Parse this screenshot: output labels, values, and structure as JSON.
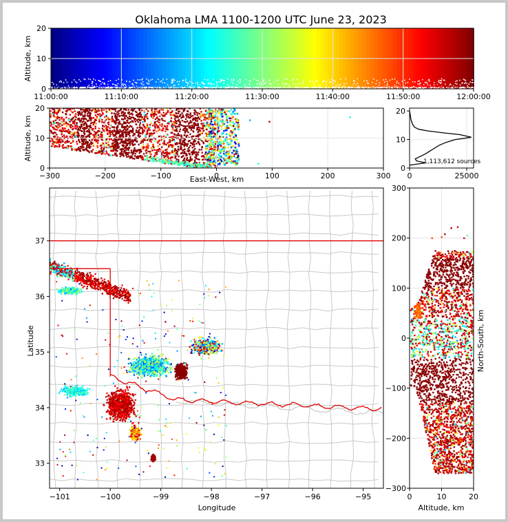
{
  "title": "Oklahoma LMA 1100-1200 UTC June 23, 2023",
  "chart_data": [
    {
      "id": "time-height",
      "type": "scatter",
      "xlabel": "",
      "ylabel": "Altitude, km",
      "xlim": [
        "11:00:00",
        "12:00:00"
      ],
      "ylim": [
        0,
        20
      ],
      "xticks": [
        "11:00:00",
        "11:10:00",
        "11:20:00",
        "11:30:00",
        "11:40:00",
        "11:50:00",
        "12:00:00"
      ],
      "yticks": [
        "0",
        "10",
        "20"
      ],
      "colormap": "jet (colored by time)",
      "grid": true
    },
    {
      "id": "ew-altitude",
      "type": "scatter",
      "xlabel": "East-West, km",
      "ylabel": "Altitude, km",
      "xlim": [
        -300,
        300
      ],
      "ylim": [
        0,
        20
      ],
      "xticks": [
        "−300",
        "−200",
        "−100",
        "0",
        "100",
        "200",
        "300"
      ],
      "yticks": [
        "0",
        "10",
        "20"
      ],
      "grid": true
    },
    {
      "id": "altitude-histogram",
      "type": "line",
      "xlim": [
        0,
        28000
      ],
      "ylim": [
        0,
        21
      ],
      "xticks": [
        "0",
        "25000"
      ],
      "yticks": [
        "0",
        "10",
        "20"
      ],
      "annotation": "1,113,612 sources",
      "profile": [
        [
          0,
          1
        ],
        [
          7000,
          1.8
        ],
        [
          3000,
          2.5
        ],
        [
          2500,
          3.2
        ],
        [
          4500,
          4
        ],
        [
          7000,
          5
        ],
        [
          9000,
          6
        ],
        [
          11000,
          7
        ],
        [
          13000,
          8
        ],
        [
          16000,
          9
        ],
        [
          20000,
          10
        ],
        [
          27000,
          10.8
        ],
        [
          22000,
          11.7
        ],
        [
          15000,
          12.3
        ],
        [
          8000,
          13
        ],
        [
          4000,
          13.6
        ],
        [
          2200,
          14.3
        ],
        [
          1200,
          15.5
        ],
        [
          600,
          17
        ],
        [
          200,
          19
        ],
        [
          0,
          20
        ]
      ]
    },
    {
      "id": "plan-view",
      "type": "scatter",
      "xlabel": "Longitude",
      "ylabel": "Latitude",
      "xlim": [
        -101.2,
        -94.6
      ],
      "ylim": [
        32.55,
        37.95
      ],
      "xticks": [
        "−101",
        "−100",
        "−99",
        "−98",
        "−97",
        "−96",
        "−95"
      ],
      "yticks": [
        "33",
        "34",
        "35",
        "36",
        "37"
      ],
      "grid": false
    },
    {
      "id": "altitude-ns",
      "type": "scatter",
      "xlabel": "Altitude, km",
      "ylabel": "North-South, km",
      "xlim": [
        0,
        20
      ],
      "ylim": [
        -300,
        300
      ],
      "xticks": [
        "0",
        "10",
        "20"
      ],
      "yticks": [
        "−300",
        "−200",
        "−100",
        "0",
        "100",
        "200",
        "300"
      ],
      "grid": true
    }
  ]
}
